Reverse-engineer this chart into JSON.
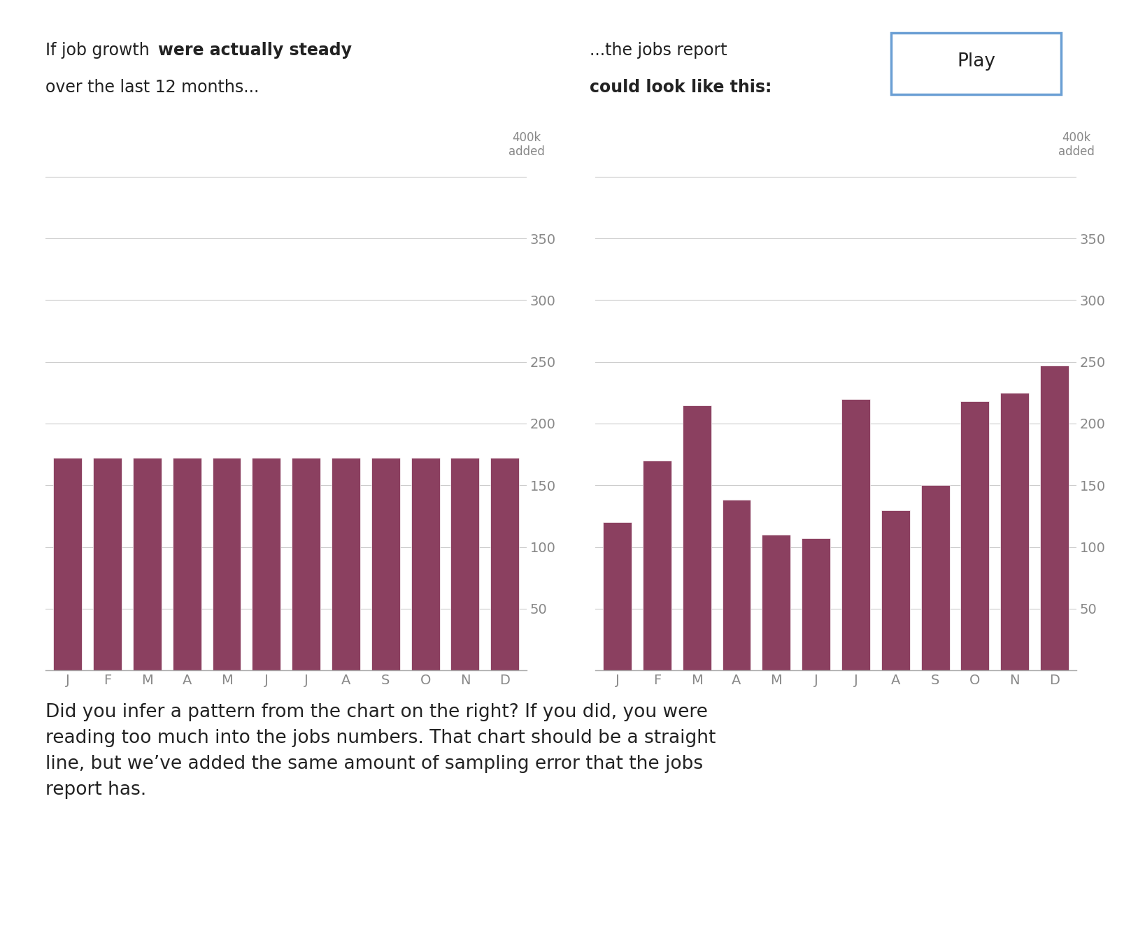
{
  "left_values": [
    172,
    172,
    172,
    172,
    172,
    172,
    172,
    172,
    172,
    172,
    172,
    172
  ],
  "right_values": [
    120,
    170,
    215,
    138,
    110,
    107,
    220,
    130,
    150,
    218,
    225,
    247
  ],
  "months": [
    "J",
    "F",
    "M",
    "A",
    "M",
    "J",
    "J",
    "A",
    "S",
    "O",
    "N",
    "D"
  ],
  "bar_color": "#8B4060",
  "bg_color": "#ffffff",
  "grid_color": "#cccccc",
  "yticks": [
    0,
    50,
    100,
    150,
    200,
    250,
    300,
    350,
    400
  ],
  "ylim": [
    0,
    415
  ],
  "tick_color": "#888888",
  "axis_color": "#aaaaaa",
  "text_color": "#222222",
  "play_button_color": "#6b9fd4",
  "body_text": "Did you infer a pattern from the chart on the right? If you did, you were\nreading too much into the jobs numbers. That chart should be a straight\nline, but we’ve added the same amount of sampling error that the jobs\nreport has.",
  "figsize": [
    16.37,
    13.32
  ],
  "dpi": 100,
  "title_fontsize": 17,
  "tick_fontsize": 14,
  "body_fontsize": 19
}
